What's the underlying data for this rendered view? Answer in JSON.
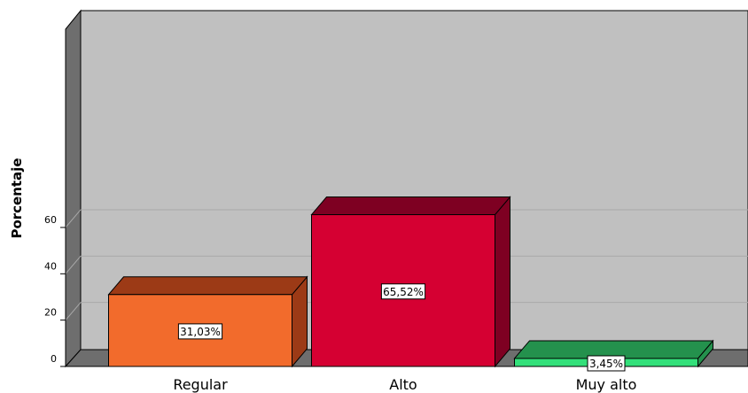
{
  "chart_data": {
    "type": "bar",
    "categories": [
      "Regular",
      "Alto",
      "Muy alto"
    ],
    "values": [
      31.03,
      65.52,
      3.45
    ],
    "data_labels": [
      "31,03%",
      "65,52%",
      "3,45%"
    ],
    "ylabel": "Porcentaje",
    "xlabel": "",
    "ylim": [
      0,
      75
    ],
    "yticks": [
      0,
      20,
      40,
      60
    ],
    "ytick_labels": [
      "0",
      "20",
      "40",
      "60"
    ],
    "grid": true,
    "style": "3d",
    "colors": {
      "Regular": {
        "front": "#f26b2c",
        "top": "#9c3a16",
        "side": "#9c3a16"
      },
      "Alto": {
        "front": "#d50032",
        "top": "#7e0022",
        "side": "#7e0022"
      },
      "Muy alto": {
        "front": "#33e07a",
        "top": "#24914d",
        "side": "#24914d"
      },
      "plot_back": "#c0c0c0",
      "plot_side": "#6e6e6e"
    }
  }
}
